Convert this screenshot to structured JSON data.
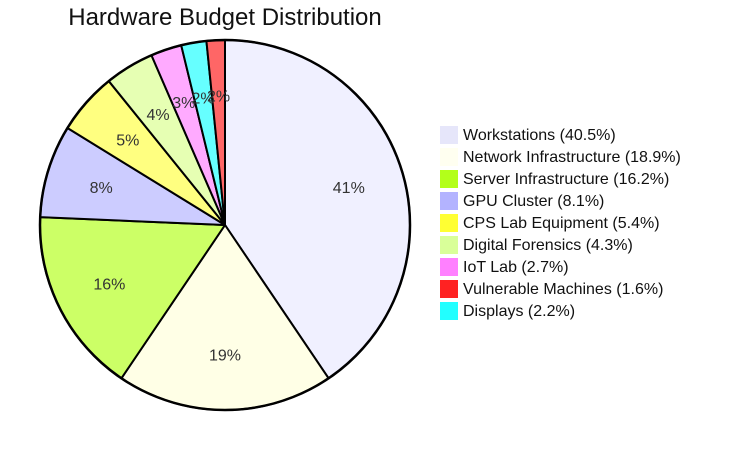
{
  "chart_data": {
    "type": "pie",
    "title": "Hardware Budget Distribution",
    "start_angle": "top",
    "direction": "clockwise",
    "legend_position": "right",
    "slices": [
      {
        "name": "Workstations",
        "value": 40.5,
        "label": "41%",
        "legend": "Workstations (40.5%)",
        "color": "#f0f0ff"
      },
      {
        "name": "Network Infrastructure",
        "value": 18.9,
        "label": "19%",
        "legend": "Network Infrastructure (18.9%)",
        "color": "#ffffe6"
      },
      {
        "name": "Server Infrastructure",
        "value": 16.2,
        "label": "16%",
        "legend": "Server Infrastructure (16.2%)",
        "color": "#ccff66"
      },
      {
        "name": "GPU Cluster",
        "value": 8.1,
        "label": "8%",
        "legend": "GPU Cluster (8.1%)",
        "color": "#ccccff"
      },
      {
        "name": "CPS Lab Equipment",
        "value": 5.4,
        "label": "5%",
        "legend": "CPS Lab Equipment (5.4%)",
        "color": "#ffff80"
      },
      {
        "name": "Digital Forensics",
        "value": 4.3,
        "label": "4%",
        "legend": "Digital Forensics (4.3%)",
        "color": "#e6ffb3"
      },
      {
        "name": "IoT Lab",
        "value": 2.7,
        "label": "3%",
        "legend": "IoT Lab (2.7%)",
        "color": "#ffaaff"
      },
      {
        "name": "Displays",
        "value": 2.2,
        "label": "2%",
        "legend": "Displays (2.2%)",
        "color": "#66ffff"
      },
      {
        "name": "Vulnerable Machines",
        "value": 1.6,
        "label": "2%",
        "legend": "Vulnerable Machines (1.6%)",
        "color": "#ff6666"
      }
    ],
    "legend_order": [
      "Workstations",
      "Network Infrastructure",
      "Server Infrastructure",
      "GPU Cluster",
      "CPS Lab Equipment",
      "Digital Forensics",
      "IoT Lab",
      "Vulnerable Machines",
      "Displays"
    ],
    "legend_colors": {
      "Workstations": "#e6e6fa",
      "Network Infrastructure": "#fffff0",
      "Server Infrastructure": "#b3ff1a",
      "GPU Cluster": "#b3b3ff",
      "CPS Lab Equipment": "#ffff33",
      "Digital Forensics": "#d9ff99",
      "IoT Lab": "#ff80ff",
      "Vulnerable Machines": "#ff2222",
      "Displays": "#22ffff"
    }
  }
}
